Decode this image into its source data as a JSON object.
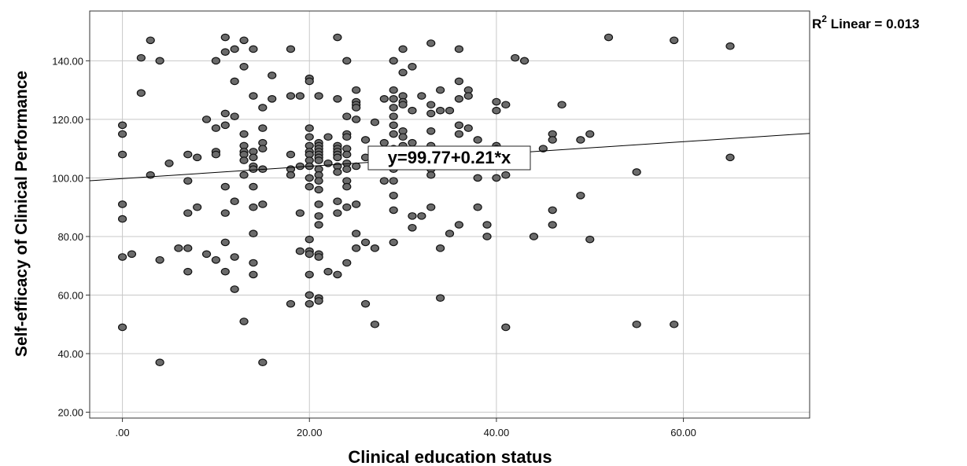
{
  "chart_data": {
    "type": "scatter",
    "xlabel": "Clinical education status",
    "ylabel": "Self-efficacy of Clinical Performance",
    "xlim": [
      -3.5,
      73.5
    ],
    "ylim": [
      18,
      157
    ],
    "x_ticks": [
      0,
      20,
      40,
      60
    ],
    "x_tick_labels": [
      ".00",
      "20.00",
      "40.00",
      "60.00"
    ],
    "y_ticks": [
      20,
      40,
      60,
      80,
      100,
      120,
      140
    ],
    "y_tick_labels": [
      "20.00",
      "40.00",
      "60.00",
      "80.00",
      "100.00",
      "120.00",
      "140.00"
    ],
    "grid": true,
    "fit_line": {
      "intercept": 99.77,
      "slope": 0.21
    },
    "equation_label": "y=99.77+0.21*x",
    "r2_label": {
      "prefix": "R",
      "superscript": "2",
      "text": " Linear = 0.013"
    },
    "colors": {
      "point_fill": "#6b6b6b",
      "point_stroke": "#111111",
      "grid": "#c8c8c8",
      "line": "#000000"
    },
    "points": [
      [
        0,
        118
      ],
      [
        0,
        115
      ],
      [
        0,
        108
      ],
      [
        0,
        91
      ],
      [
        0,
        86
      ],
      [
        0,
        73
      ],
      [
        0,
        49
      ],
      [
        1,
        74
      ],
      [
        2,
        141
      ],
      [
        2,
        129
      ],
      [
        3,
        147
      ],
      [
        3,
        101
      ],
      [
        4,
        140
      ],
      [
        4,
        72
      ],
      [
        4,
        37
      ],
      [
        5,
        105
      ],
      [
        6,
        76
      ],
      [
        7,
        108
      ],
      [
        7,
        99
      ],
      [
        7,
        88
      ],
      [
        7,
        76
      ],
      [
        7,
        68
      ],
      [
        8,
        107
      ],
      [
        8,
        90
      ],
      [
        9,
        120
      ],
      [
        9,
        74
      ],
      [
        10,
        140
      ],
      [
        10,
        117
      ],
      [
        10,
        109
      ],
      [
        10,
        108
      ],
      [
        10,
        72
      ],
      [
        11,
        148
      ],
      [
        11,
        143
      ],
      [
        11,
        122
      ],
      [
        11,
        118
      ],
      [
        11,
        97
      ],
      [
        11,
        88
      ],
      [
        11,
        78
      ],
      [
        11,
        68
      ],
      [
        12,
        144
      ],
      [
        12,
        133
      ],
      [
        12,
        121
      ],
      [
        12,
        92
      ],
      [
        12,
        73
      ],
      [
        12,
        62
      ],
      [
        13,
        147
      ],
      [
        13,
        138
      ],
      [
        13,
        115
      ],
      [
        13,
        111
      ],
      [
        13,
        109
      ],
      [
        13,
        108
      ],
      [
        13,
        106
      ],
      [
        13,
        101
      ],
      [
        13,
        51
      ],
      [
        14,
        144
      ],
      [
        14,
        128
      ],
      [
        14,
        109
      ],
      [
        14,
        107
      ],
      [
        14,
        104
      ],
      [
        14,
        103
      ],
      [
        14,
        97
      ],
      [
        14,
        90
      ],
      [
        14,
        81
      ],
      [
        14,
        71
      ],
      [
        14,
        67
      ],
      [
        15,
        124
      ],
      [
        15,
        117
      ],
      [
        15,
        112
      ],
      [
        15,
        110
      ],
      [
        15,
        103
      ],
      [
        15,
        91
      ],
      [
        15,
        37
      ],
      [
        16,
        135
      ],
      [
        16,
        127
      ],
      [
        18,
        144
      ],
      [
        18,
        128
      ],
      [
        18,
        108
      ],
      [
        18,
        103
      ],
      [
        18,
        101
      ],
      [
        18,
        57
      ],
      [
        19,
        128
      ],
      [
        19,
        104
      ],
      [
        19,
        88
      ],
      [
        19,
        75
      ],
      [
        20,
        134
      ],
      [
        20,
        133
      ],
      [
        20,
        117
      ],
      [
        20,
        114
      ],
      [
        20,
        111
      ],
      [
        20,
        109
      ],
      [
        20,
        108
      ],
      [
        20,
        106
      ],
      [
        20,
        104
      ],
      [
        20,
        100
      ],
      [
        20,
        97
      ],
      [
        20,
        79
      ],
      [
        20,
        75
      ],
      [
        20,
        74
      ],
      [
        20,
        67
      ],
      [
        20,
        60
      ],
      [
        20,
        57
      ],
      [
        21,
        128
      ],
      [
        21,
        112
      ],
      [
        21,
        111
      ],
      [
        21,
        110
      ],
      [
        21,
        109
      ],
      [
        21,
        108
      ],
      [
        21,
        107
      ],
      [
        21,
        106
      ],
      [
        21,
        103
      ],
      [
        21,
        101
      ],
      [
        21,
        99
      ],
      [
        21,
        96
      ],
      [
        21,
        91
      ],
      [
        21,
        87
      ],
      [
        21,
        84
      ],
      [
        21,
        74
      ],
      [
        21,
        73
      ],
      [
        21,
        59
      ],
      [
        21,
        58
      ],
      [
        22,
        114
      ],
      [
        22,
        105
      ],
      [
        22,
        68
      ],
      [
        23,
        148
      ],
      [
        23,
        127
      ],
      [
        23,
        111
      ],
      [
        23,
        110
      ],
      [
        23,
        109
      ],
      [
        23,
        108
      ],
      [
        23,
        107
      ],
      [
        23,
        104
      ],
      [
        23,
        102
      ],
      [
        23,
        92
      ],
      [
        23,
        88
      ],
      [
        23,
        67
      ],
      [
        24,
        140
      ],
      [
        24,
        121
      ],
      [
        24,
        115
      ],
      [
        24,
        114
      ],
      [
        24,
        110
      ],
      [
        24,
        108
      ],
      [
        24,
        105
      ],
      [
        24,
        103
      ],
      [
        24,
        99
      ],
      [
        24,
        97
      ],
      [
        24,
        90
      ],
      [
        24,
        71
      ],
      [
        25,
        130
      ],
      [
        25,
        126
      ],
      [
        25,
        125
      ],
      [
        25,
        124
      ],
      [
        25,
        120
      ],
      [
        25,
        104
      ],
      [
        25,
        91
      ],
      [
        25,
        81
      ],
      [
        25,
        76
      ],
      [
        26,
        113
      ],
      [
        26,
        107
      ],
      [
        26,
        78
      ],
      [
        26,
        57
      ],
      [
        27,
        119
      ],
      [
        27,
        76
      ],
      [
        27,
        50
      ],
      [
        28,
        127
      ],
      [
        28,
        112
      ],
      [
        28,
        99
      ],
      [
        29,
        140
      ],
      [
        29,
        130
      ],
      [
        29,
        127
      ],
      [
        29,
        124
      ],
      [
        29,
        121
      ],
      [
        29,
        118
      ],
      [
        29,
        115
      ],
      [
        29,
        110
      ],
      [
        29,
        107
      ],
      [
        29,
        106
      ],
      [
        29,
        104
      ],
      [
        29,
        103
      ],
      [
        29,
        99
      ],
      [
        29,
        94
      ],
      [
        29,
        89
      ],
      [
        29,
        78
      ],
      [
        30,
        144
      ],
      [
        30,
        136
      ],
      [
        30,
        128
      ],
      [
        30,
        126
      ],
      [
        30,
        125
      ],
      [
        30,
        116
      ],
      [
        30,
        114
      ],
      [
        30,
        111
      ],
      [
        30,
        108
      ],
      [
        30,
        106
      ],
      [
        31,
        138
      ],
      [
        31,
        123
      ],
      [
        31,
        112
      ],
      [
        31,
        87
      ],
      [
        31,
        83
      ],
      [
        32,
        128
      ],
      [
        32,
        87
      ],
      [
        33,
        146
      ],
      [
        33,
        125
      ],
      [
        33,
        122
      ],
      [
        33,
        116
      ],
      [
        33,
        111
      ],
      [
        33,
        106
      ],
      [
        33,
        103
      ],
      [
        33,
        101
      ],
      [
        33,
        90
      ],
      [
        34,
        130
      ],
      [
        34,
        123
      ],
      [
        34,
        76
      ],
      [
        34,
        59
      ],
      [
        35,
        123
      ],
      [
        35,
        107
      ],
      [
        35,
        81
      ],
      [
        36,
        144
      ],
      [
        36,
        133
      ],
      [
        36,
        127
      ],
      [
        36,
        118
      ],
      [
        36,
        115
      ],
      [
        36,
        84
      ],
      [
        37,
        130
      ],
      [
        37,
        128
      ],
      [
        37,
        117
      ],
      [
        38,
        113
      ],
      [
        38,
        100
      ],
      [
        38,
        90
      ],
      [
        39,
        84
      ],
      [
        39,
        80
      ],
      [
        40,
        126
      ],
      [
        40,
        123
      ],
      [
        40,
        111
      ],
      [
        40,
        110
      ],
      [
        40,
        108
      ],
      [
        40,
        100
      ],
      [
        41,
        125
      ],
      [
        41,
        101
      ],
      [
        41,
        49
      ],
      [
        42,
        141
      ],
      [
        43,
        140
      ],
      [
        44,
        80
      ],
      [
        45,
        110
      ],
      [
        46,
        115
      ],
      [
        46,
        113
      ],
      [
        46,
        89
      ],
      [
        46,
        84
      ],
      [
        47,
        125
      ],
      [
        49,
        113
      ],
      [
        49,
        94
      ],
      [
        50,
        115
      ],
      [
        50,
        79
      ],
      [
        52,
        148
      ],
      [
        55,
        102
      ],
      [
        55,
        50
      ],
      [
        59,
        147
      ],
      [
        59,
        50
      ],
      [
        65,
        145
      ],
      [
        65,
        107
      ]
    ]
  }
}
